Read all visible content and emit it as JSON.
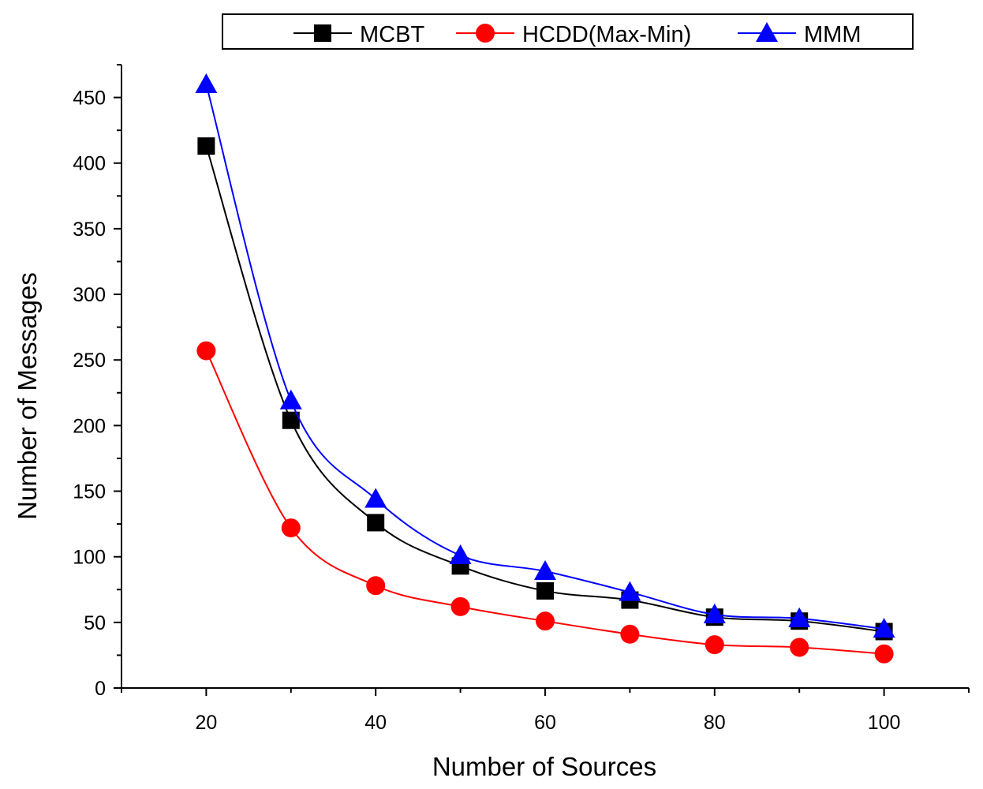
{
  "chart_data": {
    "type": "line",
    "title": "",
    "xlabel": "Number of Sources",
    "ylabel": "Number of Messages",
    "x": [
      20,
      30,
      40,
      50,
      60,
      70,
      80,
      90,
      100
    ],
    "xlim": [
      10,
      110
    ],
    "ylim": [
      0,
      475
    ],
    "xticks": [
      20,
      40,
      60,
      80,
      100
    ],
    "xtick_labels": [
      "20",
      "40",
      "60",
      "80",
      "100"
    ],
    "yticks": [
      0,
      50,
      100,
      150,
      200,
      250,
      300,
      350,
      400,
      450
    ],
    "ytick_labels": [
      "0",
      "50",
      "100",
      "150",
      "200",
      "250",
      "300",
      "350",
      "400",
      "450"
    ],
    "grid": false,
    "legend_position": "top",
    "series": [
      {
        "name": "MCBT",
        "color": "#000000",
        "marker": "square",
        "values": [
          413,
          204,
          126,
          93,
          74,
          67,
          54,
          51,
          43
        ]
      },
      {
        "name": "HCDD(Max-Min)",
        "color": "#ff0000",
        "marker": "circle",
        "values": [
          257,
          122,
          78,
          62,
          51,
          41,
          33,
          31,
          26
        ]
      },
      {
        "name": "MMM",
        "color": "#0000ff",
        "marker": "triangle",
        "values": [
          460,
          219,
          144,
          101,
          89,
          73,
          56,
          53,
          45
        ]
      }
    ]
  }
}
